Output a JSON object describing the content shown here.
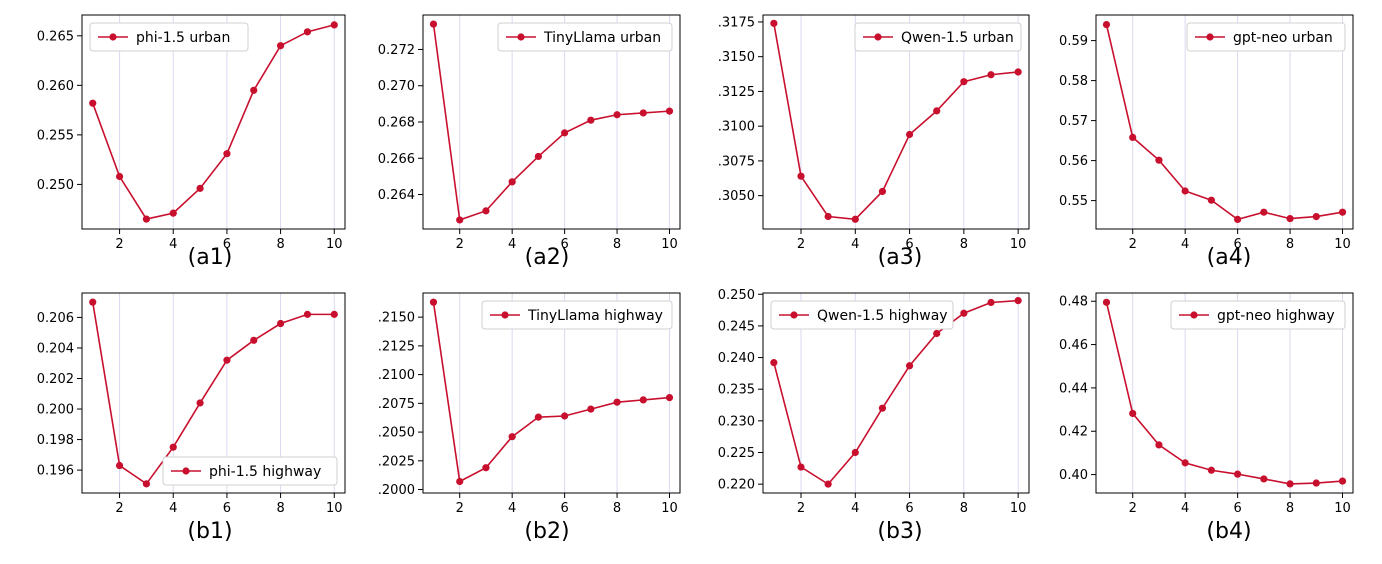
{
  "colors": {
    "line": "#c8102e",
    "axis": "#000000",
    "grid": "#d9d9f0",
    "legend_border": "#d0d0d0"
  },
  "chart_data": [
    {
      "type": "line",
      "panel": "a1",
      "caption": "(a1)",
      "x": [
        1,
        2,
        3,
        4,
        5,
        6,
        7,
        8,
        9,
        10
      ],
      "series": [
        {
          "name": "phi-1.5 urban",
          "values": [
            0.2582,
            0.2508,
            0.2465,
            0.2471,
            0.2496,
            0.2531,
            0.2595,
            0.264,
            0.2654,
            0.2661
          ]
        }
      ],
      "xticks": [
        2,
        4,
        6,
        8,
        10
      ],
      "yticks": [
        0.25,
        0.255,
        0.26,
        0.265
      ],
      "ytick_labels": [
        "0.250",
        "0.255",
        "0.260",
        "0.265"
      ],
      "xlim": [
        0.6,
        10.4
      ],
      "ylim": [
        0.2455,
        0.2671
      ],
      "legend": "top-left",
      "grid": "x"
    },
    {
      "type": "line",
      "panel": "a2",
      "caption": "(a2)",
      "x": [
        1,
        2,
        3,
        4,
        5,
        6,
        7,
        8,
        9,
        10
      ],
      "series": [
        {
          "name": "TinyLlama urban",
          "values": [
            0.2734,
            0.2626,
            0.2631,
            0.2647,
            0.2661,
            0.2674,
            0.2681,
            0.2684,
            0.2685,
            0.2686
          ]
        }
      ],
      "xticks": [
        2,
        4,
        6,
        8,
        10
      ],
      "yticks": [
        0.264,
        0.266,
        0.268,
        0.27,
        0.272
      ],
      "ytick_labels": [
        "0.264",
        "0.266",
        "0.268",
        "0.270",
        "0.272"
      ],
      "xlim": [
        0.6,
        10.4
      ],
      "ylim": [
        0.2621,
        0.2739
      ],
      "legend": "top-right",
      "grid": "x"
    },
    {
      "type": "line",
      "panel": "a3",
      "caption": "(a3)",
      "x": [
        1,
        2,
        3,
        4,
        5,
        6,
        7,
        8,
        9,
        10
      ],
      "series": [
        {
          "name": "Qwen-1.5 urban",
          "values": [
            0.3174,
            0.3064,
            0.3035,
            0.3033,
            0.3053,
            0.3094,
            0.3111,
            0.3132,
            0.3137,
            0.3139
          ]
        }
      ],
      "xticks": [
        2,
        4,
        6,
        8,
        10
      ],
      "yticks": [
        0.305,
        0.3075,
        0.31,
        0.3125,
        0.315,
        0.3175
      ],
      "ytick_labels": [
        ".3050",
        ".3075",
        ".3100",
        ".3125",
        ".3150",
        ".3175"
      ],
      "xlim": [
        0.6,
        10.4
      ],
      "ylim": [
        0.3026,
        0.318
      ],
      "legend": "top-right",
      "grid": "x"
    },
    {
      "type": "line",
      "panel": "a4",
      "caption": "(a4)",
      "x": [
        1,
        2,
        3,
        4,
        5,
        6,
        7,
        8,
        9,
        10
      ],
      "series": [
        {
          "name": "gpt-neo urban",
          "values": [
            0.594,
            0.5658,
            0.5601,
            0.5524,
            0.5501,
            0.5453,
            0.5471,
            0.5455,
            0.546,
            0.5471
          ]
        }
      ],
      "xticks": [
        2,
        4,
        6,
        8,
        10
      ],
      "yticks": [
        0.55,
        0.56,
        0.57,
        0.58,
        0.59
      ],
      "ytick_labels": [
        "0.55",
        "0.56",
        "0.57",
        "0.58",
        "0.59"
      ],
      "xlim": [
        0.6,
        10.4
      ],
      "ylim": [
        0.5429,
        0.5964
      ],
      "legend": "top-right",
      "grid": "x"
    },
    {
      "type": "line",
      "panel": "b1",
      "caption": "(b1)",
      "x": [
        1,
        2,
        3,
        4,
        5,
        6,
        7,
        8,
        9,
        10
      ],
      "series": [
        {
          "name": "phi-1.5 highway",
          "values": [
            0.207,
            0.1963,
            0.1951,
            0.1975,
            0.2004,
            0.2032,
            0.2045,
            0.2056,
            0.2062,
            0.2062
          ]
        }
      ],
      "xticks": [
        2,
        4,
        6,
        8,
        10
      ],
      "yticks": [
        0.196,
        0.198,
        0.2,
        0.202,
        0.204,
        0.206
      ],
      "ytick_labels": [
        "0.196",
        "0.198",
        "0.200",
        "0.202",
        "0.204",
        "0.206"
      ],
      "xlim": [
        0.6,
        10.4
      ],
      "ylim": [
        0.1945,
        0.2076
      ],
      "legend": "bottom-right",
      "grid": "x"
    },
    {
      "type": "line",
      "panel": "b2",
      "caption": "(b2)",
      "x": [
        1,
        2,
        3,
        4,
        5,
        6,
        7,
        8,
        9,
        10
      ],
      "series": [
        {
          "name": "TinyLlama highway",
          "values": [
            0.2163,
            0.2007,
            0.2019,
            0.2046,
            0.2063,
            0.2064,
            0.207,
            0.2076,
            0.2078,
            0.208
          ]
        }
      ],
      "xticks": [
        2,
        4,
        6,
        8,
        10
      ],
      "yticks": [
        0.2,
        0.2025,
        0.205,
        0.2075,
        0.21,
        0.2125,
        0.215
      ],
      "ytick_labels": [
        ".2000",
        ".2025",
        ".2050",
        ".2075",
        ".2100",
        ".2125",
        ".2150"
      ],
      "xlim": [
        0.6,
        10.4
      ],
      "ylim": [
        0.1997,
        0.2171
      ],
      "legend": "top-right",
      "grid": "x"
    },
    {
      "type": "line",
      "panel": "b3",
      "caption": "(b3)",
      "x": [
        1,
        2,
        3,
        4,
        5,
        6,
        7,
        8,
        9,
        10
      ],
      "series": [
        {
          "name": "Qwen-1.5 highway",
          "values": [
            0.2392,
            0.2227,
            0.22,
            0.225,
            0.232,
            0.2387,
            0.2438,
            0.247,
            0.2487,
            0.249
          ]
        }
      ],
      "xticks": [
        2,
        4,
        6,
        8,
        10
      ],
      "yticks": [
        0.22,
        0.225,
        0.23,
        0.235,
        0.24,
        0.245,
        0.25
      ],
      "ytick_labels": [
        "0.220",
        "0.225",
        "0.230",
        "0.235",
        "0.240",
        "0.245",
        "0.250"
      ],
      "xlim": [
        0.6,
        10.4
      ],
      "ylim": [
        0.2186,
        0.2502
      ],
      "legend": "top-left",
      "grid": "x"
    },
    {
      "type": "line",
      "panel": "b4",
      "caption": "(b4)",
      "x": [
        1,
        2,
        3,
        4,
        5,
        6,
        7,
        8,
        9,
        10
      ],
      "series": [
        {
          "name": "gpt-neo highway",
          "values": [
            0.4795,
            0.4282,
            0.4137,
            0.4054,
            0.402,
            0.4002,
            0.398,
            0.3957,
            0.3961,
            0.397
          ]
        }
      ],
      "xticks": [
        2,
        4,
        6,
        8,
        10
      ],
      "yticks": [
        0.4,
        0.42,
        0.44,
        0.46,
        0.48
      ],
      "ytick_labels": [
        "0.40",
        "0.42",
        "0.44",
        "0.46",
        "0.48"
      ],
      "xlim": [
        0.6,
        10.4
      ],
      "ylim": [
        0.3915,
        0.4838
      ],
      "legend": "top-right",
      "grid": "x"
    }
  ]
}
